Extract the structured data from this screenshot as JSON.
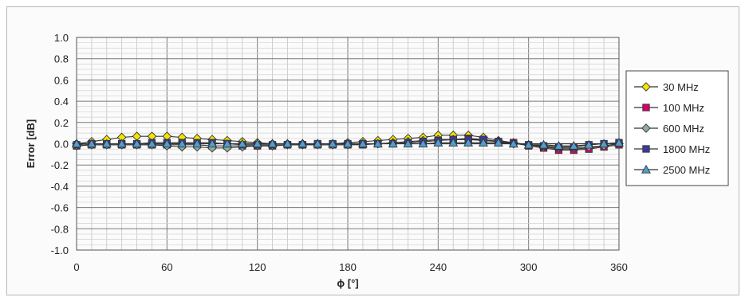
{
  "chart_data": {
    "type": "line",
    "title": "",
    "xlabel": "ϕ [°]",
    "ylabel": "Error [dB]",
    "xlim": [
      0,
      360
    ],
    "ylim": [
      -1.0,
      1.0
    ],
    "xticks": [
      0,
      60,
      120,
      180,
      240,
      300,
      360
    ],
    "xtick_labels": [
      "0",
      "60",
      "120",
      "180",
      "240",
      "300",
      "360"
    ],
    "yticks": [
      1.0,
      0.8,
      0.6,
      0.4,
      0.2,
      0.0,
      -0.2,
      -0.4,
      -0.6,
      -0.8,
      -1.0
    ],
    "ytick_labels": [
      "1.0",
      "0.8",
      "0.6",
      "0.4",
      "0.2",
      "0.0",
      "-0.2",
      "-0.4",
      "-0.6",
      "-0.8",
      "-1.0"
    ],
    "grid": true,
    "legend_position": "right",
    "x": [
      0,
      10,
      20,
      30,
      40,
      50,
      60,
      70,
      80,
      90,
      100,
      110,
      120,
      130,
      140,
      150,
      160,
      170,
      180,
      190,
      200,
      210,
      220,
      230,
      240,
      250,
      260,
      270,
      280,
      290,
      300,
      310,
      320,
      330,
      340,
      350,
      360
    ],
    "series": [
      {
        "name": "30 MHz",
        "marker": "diamond",
        "color": "#f2e600",
        "values": [
          0.0,
          0.02,
          0.04,
          0.06,
          0.07,
          0.07,
          0.07,
          0.06,
          0.05,
          0.04,
          0.03,
          0.02,
          0.01,
          0.0,
          0.0,
          0.0,
          0.0,
          0.0,
          0.01,
          0.02,
          0.03,
          0.04,
          0.05,
          0.06,
          0.08,
          0.08,
          0.08,
          0.06,
          0.03,
          0.01,
          -0.01,
          -0.03,
          -0.05,
          -0.05,
          -0.04,
          -0.02,
          0.0
        ]
      },
      {
        "name": "100 MHz",
        "marker": "square",
        "color": "#d6006a",
        "values": [
          -0.02,
          -0.01,
          -0.01,
          -0.01,
          -0.01,
          -0.01,
          -0.01,
          -0.01,
          -0.01,
          -0.02,
          -0.02,
          -0.02,
          -0.02,
          -0.02,
          -0.01,
          -0.01,
          -0.01,
          -0.01,
          -0.01,
          -0.01,
          0.0,
          0.0,
          0.01,
          0.02,
          0.03,
          0.04,
          0.05,
          0.04,
          0.02,
          0.01,
          -0.02,
          -0.04,
          -0.06,
          -0.06,
          -0.05,
          -0.03,
          -0.01
        ]
      },
      {
        "name": "600 MHz",
        "marker": "diamond",
        "color": "#8fae9e",
        "values": [
          -0.02,
          -0.01,
          -0.01,
          -0.01,
          -0.01,
          -0.01,
          -0.02,
          -0.03,
          -0.03,
          -0.04,
          -0.04,
          -0.03,
          -0.02,
          -0.02,
          -0.01,
          -0.01,
          -0.01,
          -0.01,
          -0.01,
          0.0,
          0.0,
          0.01,
          0.02,
          0.03,
          0.04,
          0.04,
          0.04,
          0.03,
          0.02,
          0.0,
          -0.01,
          -0.03,
          -0.04,
          -0.04,
          -0.03,
          -0.02,
          0.0
        ]
      },
      {
        "name": "1800 MHz",
        "marker": "square",
        "color": "#3c3c96",
        "values": [
          -0.01,
          0.0,
          0.0,
          0.0,
          0.0,
          0.01,
          0.01,
          0.01,
          0.01,
          0.01,
          0.0,
          -0.01,
          -0.01,
          -0.01,
          -0.01,
          -0.01,
          0.0,
          0.0,
          0.0,
          0.0,
          0.0,
          0.0,
          0.01,
          0.02,
          0.03,
          0.04,
          0.04,
          0.04,
          0.02,
          0.0,
          -0.01,
          -0.02,
          -0.03,
          -0.03,
          -0.01,
          0.0,
          0.01
        ]
      },
      {
        "name": "2500 MHz",
        "marker": "triangle",
        "color": "#4fa0cf",
        "values": [
          0.0,
          0.0,
          0.0,
          0.0,
          0.0,
          0.0,
          0.0,
          0.0,
          0.0,
          0.0,
          0.0,
          0.0,
          0.0,
          0.0,
          0.0,
          0.0,
          0.0,
          0.0,
          0.0,
          0.0,
          0.0,
          0.0,
          0.0,
          0.0,
          0.01,
          0.01,
          0.01,
          0.01,
          0.01,
          0.0,
          -0.01,
          -0.01,
          -0.02,
          -0.02,
          -0.01,
          0.0,
          0.01
        ]
      }
    ]
  }
}
